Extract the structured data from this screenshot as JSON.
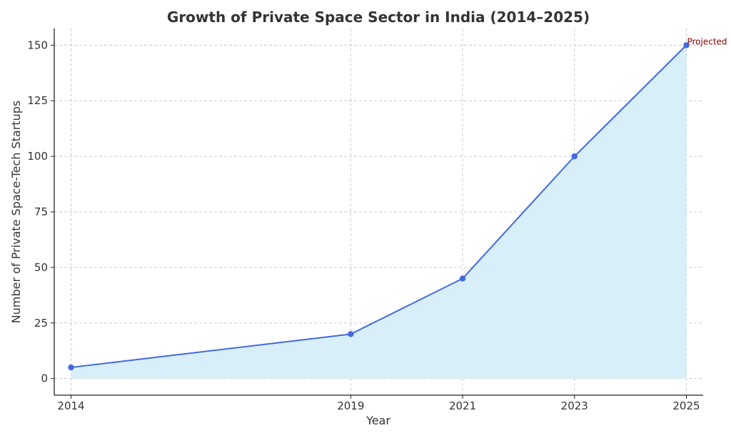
{
  "chart_data": {
    "type": "area",
    "title": "Growth of Private Space Sector in India (2014–2025)",
    "xlabel": "Year",
    "ylabel": "Number of Private Space-Tech Startups",
    "x": [
      2014,
      2019,
      2021,
      2023,
      2025
    ],
    "x_tick_labels": [
      "2014",
      "2019",
      "2021",
      "2023",
      "2025"
    ],
    "y_ticks": [
      0,
      25,
      50,
      75,
      100,
      125,
      150
    ],
    "y_tick_labels": [
      "0",
      "25",
      "50",
      "75",
      "100",
      "125",
      "150"
    ],
    "xlim": [
      2013.7,
      2025.3
    ],
    "ylim": [
      -7.5,
      157.5
    ],
    "series": [
      {
        "values": [
          5,
          20,
          45,
          100,
          150
        ]
      }
    ],
    "annotation": {
      "text": "Projected",
      "x": 2025,
      "y": 150
    },
    "grid": true,
    "colors": {
      "line": "#4169e1",
      "fill": "#d8eef8",
      "annotation": "#8b0000"
    }
  }
}
